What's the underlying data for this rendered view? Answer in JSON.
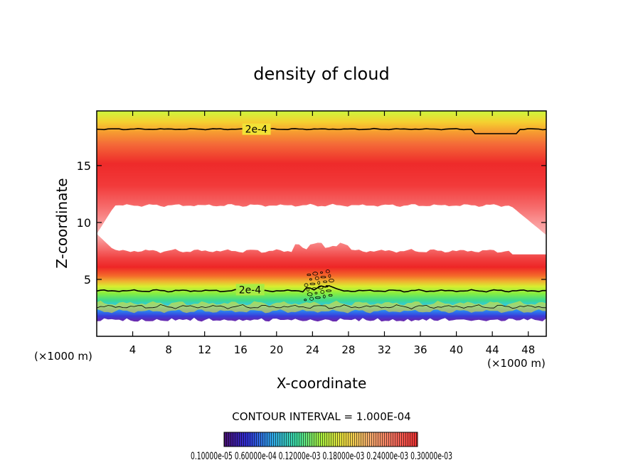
{
  "chart_data": {
    "type": "heatmap",
    "title": "density of cloud",
    "xlabel": "X-coordinate",
    "ylabel": "Z-coordinate",
    "x_unit_left": "(×1000 m)",
    "x_unit_right": "(×1000 m)",
    "xlim": [
      0,
      50
    ],
    "ylim": [
      0,
      19.8
    ],
    "x_ticks": [
      4,
      8,
      12,
      16,
      20,
      24,
      28,
      32,
      36,
      40,
      44,
      48
    ],
    "y_ticks": [
      5,
      10,
      15
    ],
    "contour_interval_text": "CONTOUR INTERVAL = 1.000E-04",
    "contour_labels": [
      {
        "text": "2e-4",
        "x": 16.5,
        "z": 18.2
      },
      {
        "text": "2e-4",
        "x": 15.8,
        "z": 4.1
      }
    ],
    "colorbar_labels_text": "0.10000e-05 0.60000e-04 0.12000e-03 0.18000e-03 0.24000e-03 0.30000e-03",
    "colorbar_range": [
      1e-06,
      0.0003
    ],
    "layers": {
      "upper_band": {
        "z_bottom": 11.5,
        "z_top": 19.8,
        "peak_z": 14.2
      },
      "lower_band": {
        "z_bottom": 1.3,
        "z_top": 7.5,
        "peak_z": 5.3
      },
      "clear_gap": {
        "z_bottom": 7.2,
        "z_top": 11.6
      }
    }
  }
}
